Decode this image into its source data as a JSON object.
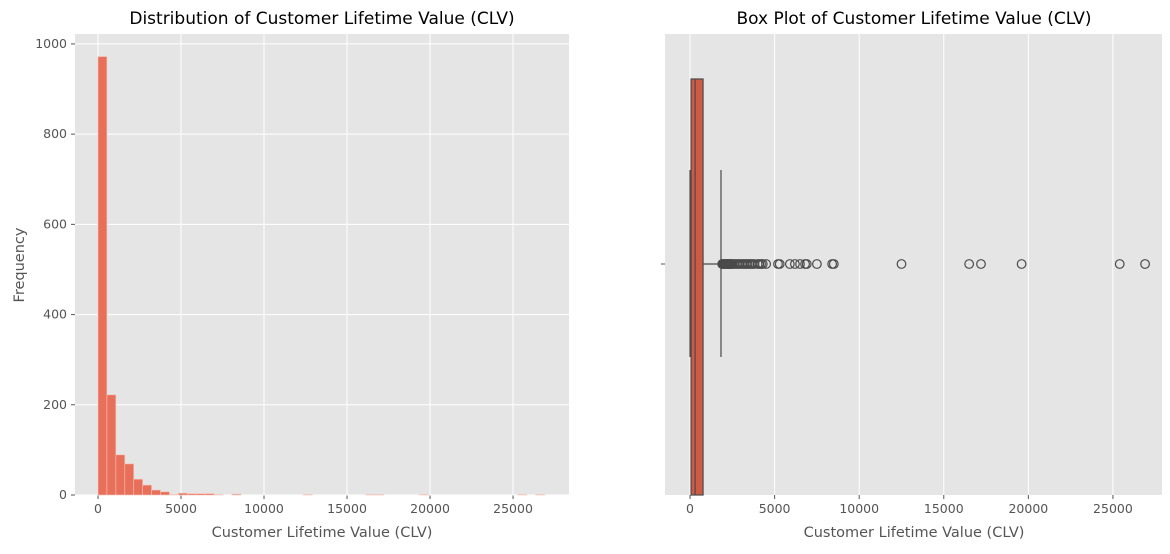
{
  "chart_data": [
    {
      "type": "bar",
      "subtype": "histogram",
      "title": "Distribution of Customer Lifetime Value (CLV)",
      "xlabel": "Customer Lifetime Value (CLV)",
      "ylabel": "Frequency",
      "xlim": [
        -1385,
        28370
      ],
      "ylim": [
        0,
        1022
      ],
      "xticks": [
        0,
        5000,
        10000,
        15000,
        20000,
        25000
      ],
      "yticks": [
        0,
        200,
        400,
        600,
        800,
        1000
      ],
      "bin_start": 0,
      "bin_width": 538,
      "counts": [
        972,
        222,
        89,
        69,
        35,
        22,
        11,
        7,
        1,
        4,
        3,
        3,
        3,
        1,
        0,
        2,
        0,
        0,
        0,
        0,
        0,
        0,
        0,
        1,
        0,
        0,
        0,
        0,
        0,
        0,
        1,
        1,
        0,
        0,
        0,
        0,
        1,
        0,
        0,
        0,
        0,
        0,
        0,
        0,
        0,
        0,
        0,
        1,
        0,
        1
      ],
      "color": "#e8705a",
      "grid": true
    },
    {
      "type": "box",
      "title": "Box Plot of Customer Lifetime Value (CLV)",
      "xlabel": "Customer Lifetime Value (CLV)",
      "xlim": [
        -1480,
        27900
      ],
      "xticks": [
        0,
        5000,
        10000,
        15000,
        20000,
        25000
      ],
      "whisker_low": 0,
      "q1": 60,
      "median": 300,
      "q3": 770,
      "whisker_high": 1830,
      "outliers": [
        1900,
        1950,
        2000,
        2050,
        2100,
        2150,
        2200,
        2250,
        2300,
        2350,
        2400,
        2450,
        2500,
        2600,
        2700,
        2800,
        2900,
        3000,
        3100,
        3200,
        3300,
        3400,
        3500,
        3600,
        3700,
        3800,
        4000,
        4100,
        4200,
        4300,
        4500,
        5200,
        5300,
        5900,
        6200,
        6500,
        6800,
        6900,
        7500,
        8400,
        8500,
        12500,
        16500,
        17200,
        19600,
        25400,
        26900
      ],
      "color": "#cf5a44",
      "grid": true
    }
  ]
}
